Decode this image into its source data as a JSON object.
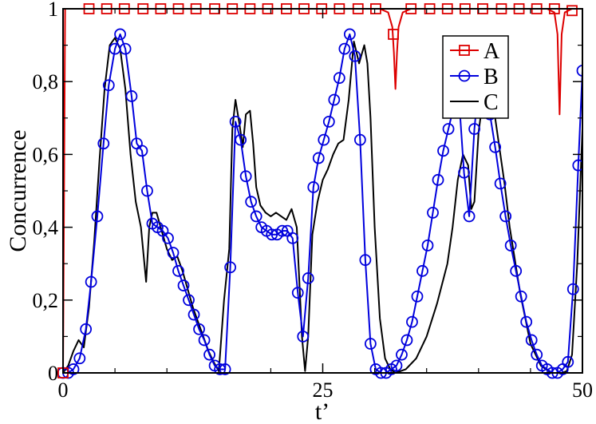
{
  "chart_data": {
    "type": "line",
    "title": "",
    "xlabel": "t’",
    "ylabel": "Concurrence",
    "xlim": [
      0,
      50
    ],
    "ylim": [
      0,
      1
    ],
    "x_ticks": [
      {
        "value": 0,
        "label": "0"
      },
      {
        "value": 25,
        "label": "25"
      },
      {
        "value": 50,
        "label": "50"
      }
    ],
    "y_ticks": [
      {
        "value": 0,
        "label": "0"
      },
      {
        "value": 0.2,
        "label": "0,2"
      },
      {
        "value": 0.4,
        "label": "0,4"
      },
      {
        "value": 0.6,
        "label": "0,6"
      },
      {
        "value": 0.8,
        "label": "0,8"
      },
      {
        "value": 1,
        "label": "1"
      }
    ],
    "grid": false,
    "legend_position": "top-right",
    "series": [
      {
        "name": "A",
        "color": "#dd0000",
        "marker": "square",
        "x": [
          0,
          0.2,
          2,
          4,
          8,
          12,
          16,
          20,
          24,
          28,
          30.5,
          31.3,
          31.7,
          31.85,
          32.0,
          32.15,
          32.3,
          32.7,
          33.5,
          36,
          40,
          44,
          46.6,
          47.3,
          47.6,
          47.8,
          48.0,
          48.3,
          49,
          50
        ],
        "y": [
          0,
          1,
          1,
          1,
          1,
          1,
          1,
          1,
          1,
          1,
          1,
          0.99,
          0.95,
          0.88,
          0.78,
          0.88,
          0.95,
          0.99,
          1,
          1,
          1,
          1,
          1,
          0.99,
          0.93,
          0.71,
          0.93,
          0.99,
          1,
          1
        ],
        "marker_x": [
          0,
          2.5,
          4.2,
          5.9,
          7.7,
          9.4,
          11.1,
          12.8,
          14.6,
          16.3,
          18.0,
          19.7,
          21.5,
          23.2,
          24.9,
          26.6,
          28.4,
          30.1,
          31.8,
          33.5,
          35.3,
          37.0,
          38.7,
          40.4,
          42.2,
          43.9,
          45.6,
          47.3,
          49.0
        ],
        "marker_y": [
          0,
          1,
          1,
          1,
          1,
          1,
          1,
          1,
          1,
          1,
          1,
          1,
          1,
          1,
          1,
          1,
          1,
          1,
          0.93,
          1,
          1,
          1,
          1,
          1,
          1,
          1,
          1,
          1,
          0.995
        ]
      },
      {
        "name": "B",
        "color": "#0000dd",
        "marker": "circle",
        "x": [
          0,
          0.5,
          1.0,
          1.6,
          2.2,
          2.7,
          3.3,
          3.9,
          4.4,
          5.0,
          5.5,
          6.0,
          6.6,
          7.1,
          7.6,
          8.1,
          8.6,
          9.1,
          9.6,
          10.1,
          10.6,
          11.1,
          11.6,
          12.1,
          12.6,
          13.1,
          13.6,
          14.1,
          14.6,
          15.1,
          15.6,
          16.1,
          16.6,
          17.1,
          17.6,
          18.1,
          18.6,
          19.1,
          19.6,
          20.1,
          20.6,
          21.1,
          21.6,
          22.1,
          22.6,
          23.1,
          23.6,
          24.1,
          24.6,
          25.1,
          25.6,
          26.1,
          26.6,
          27.1,
          27.6,
          28.1,
          28.6,
          29.1,
          29.6,
          30.1,
          30.6,
          31.1,
          31.6,
          32.1,
          32.6,
          33.1,
          33.6,
          34.1,
          34.6,
          35.1,
          35.6,
          36.1,
          36.6,
          37.1,
          37.6,
          38.1,
          38.6,
          39.1,
          39.6,
          40.1,
          40.6,
          41.1,
          41.6,
          42.1,
          42.6,
          43.1,
          43.6,
          44.1,
          44.6,
          45.1,
          45.6,
          46.1,
          46.6,
          47.1,
          47.6,
          48.1,
          48.6,
          49.1,
          49.6,
          50.0
        ],
        "y": [
          0,
          0,
          0.01,
          0.04,
          0.12,
          0.25,
          0.43,
          0.63,
          0.79,
          0.89,
          0.93,
          0.89,
          0.76,
          0.63,
          0.61,
          0.5,
          0.41,
          0.4,
          0.39,
          0.37,
          0.33,
          0.28,
          0.24,
          0.2,
          0.16,
          0.12,
          0.09,
          0.05,
          0.02,
          0.01,
          0.01,
          0.29,
          0.69,
          0.64,
          0.54,
          0.47,
          0.43,
          0.4,
          0.39,
          0.38,
          0.38,
          0.39,
          0.39,
          0.37,
          0.22,
          0.1,
          0.26,
          0.51,
          0.59,
          0.64,
          0.69,
          0.75,
          0.81,
          0.89,
          0.93,
          0.87,
          0.64,
          0.31,
          0.08,
          0.01,
          0.0,
          0.0,
          0.01,
          0.02,
          0.05,
          0.09,
          0.14,
          0.21,
          0.28,
          0.35,
          0.44,
          0.53,
          0.61,
          0.67,
          0.73,
          0.76,
          0.55,
          0.43,
          0.67,
          0.82,
          0.76,
          0.71,
          0.62,
          0.52,
          0.43,
          0.35,
          0.28,
          0.21,
          0.14,
          0.09,
          0.05,
          0.02,
          0.01,
          0.0,
          0.0,
          0.01,
          0.03,
          0.23,
          0.57,
          0.83
        ]
      },
      {
        "name": "C",
        "color": "#000000",
        "marker": "none",
        "x": [
          0,
          0.5,
          1.0,
          1.5,
          2.0,
          2.5,
          3.0,
          3.5,
          4.0,
          4.5,
          5.0,
          5.5,
          6.0,
          6.5,
          7.0,
          7.5,
          8.0,
          8.3,
          8.6,
          9.0,
          9.5,
          10.0,
          10.5,
          11.0,
          11.5,
          12.0,
          12.5,
          13.0,
          13.5,
          14.0,
          14.5,
          15.0,
          15.5,
          16.0,
          16.3,
          16.6,
          17.0,
          17.3,
          17.6,
          18.0,
          18.3,
          18.6,
          19.0,
          19.5,
          20.0,
          20.5,
          21.0,
          21.5,
          22.0,
          22.5,
          23.0,
          23.3,
          23.6,
          24.0,
          24.5,
          25.0,
          25.5,
          26.0,
          26.5,
          27.0,
          27.5,
          28.0,
          28.5,
          29.0,
          29.3,
          29.6,
          30.0,
          30.5,
          31.0,
          31.5,
          32.0,
          33.0,
          34.0,
          35.0,
          36.0,
          37.0,
          37.5,
          38.0,
          38.5,
          39.0,
          39.3,
          39.6,
          40.0,
          40.5,
          41.0,
          41.5,
          42.0,
          42.5,
          43.0,
          44.0,
          45.0,
          46.0,
          47.0,
          48.0,
          48.5,
          49.0,
          49.5,
          50.0
        ],
        "y": [
          0,
          0.02,
          0.06,
          0.09,
          0.07,
          0.18,
          0.36,
          0.58,
          0.78,
          0.9,
          0.92,
          0.89,
          0.78,
          0.6,
          0.47,
          0.4,
          0.25,
          0.4,
          0.44,
          0.44,
          0.39,
          0.34,
          0.31,
          0.32,
          0.28,
          0.23,
          0.18,
          0.14,
          0.1,
          0.06,
          0.03,
          0.005,
          0.2,
          0.34,
          0.67,
          0.75,
          0.68,
          0.62,
          0.71,
          0.72,
          0.63,
          0.51,
          0.46,
          0.44,
          0.43,
          0.44,
          0.43,
          0.42,
          0.45,
          0.4,
          0.1,
          0.005,
          0.1,
          0.38,
          0.47,
          0.53,
          0.56,
          0.6,
          0.63,
          0.64,
          0.75,
          0.91,
          0.85,
          0.9,
          0.85,
          0.7,
          0.4,
          0.15,
          0.04,
          0.01,
          0.0,
          0.01,
          0.04,
          0.1,
          0.19,
          0.3,
          0.4,
          0.53,
          0.6,
          0.57,
          0.45,
          0.47,
          0.66,
          0.77,
          0.8,
          0.72,
          0.62,
          0.52,
          0.4,
          0.22,
          0.08,
          0.02,
          0.0,
          0.0,
          0.005,
          0.05,
          0.3,
          0.67
        ]
      }
    ]
  }
}
